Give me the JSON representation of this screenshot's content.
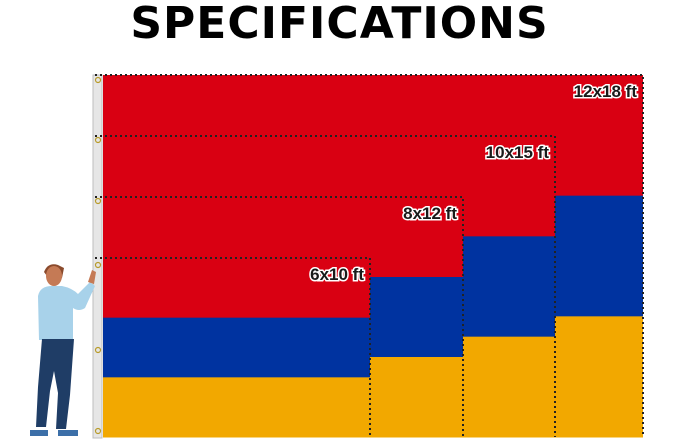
{
  "title": "SPECIFICATIONS",
  "colors": {
    "red": "#d90012",
    "blue": "#0033a0",
    "orange": "#f2a800"
  },
  "sizes": [
    {
      "label": "12x18 ft"
    },
    {
      "label": "10x15 ft"
    },
    {
      "label": "8x12 ft"
    },
    {
      "label": "6x10 ft"
    }
  ],
  "icons": [
    "person-figure",
    "flag-pole"
  ]
}
